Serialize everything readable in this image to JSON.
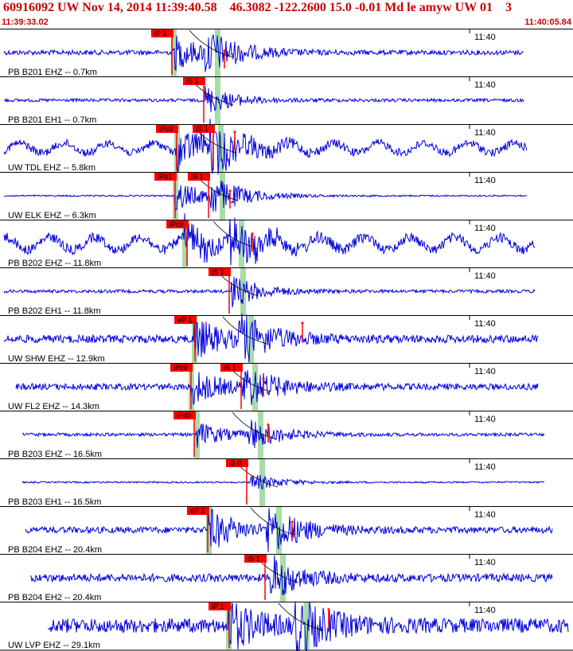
{
  "header": {
    "title": "60916092 UW Nov 14, 2014 11:39:40.58    46.3082 -122.2600 15.0 -0.01 Md le amyw UW 01    3",
    "start_time": "11:39:33.02",
    "end_time": "11:40:05.84"
  },
  "colors": {
    "trace": "#0000dd",
    "pick_box": "#ff0000",
    "pick_flag": "#ff0000",
    "predicted_band": "#a8dca8",
    "travel_curve": "#000000",
    "title": "#cc0000"
  },
  "traces": [
    {
      "label": "PB B201 EHZ -- 0.7km",
      "time_mark": "11:40",
      "picks": [
        "iP 1"
      ],
      "amp_marker": true
    },
    {
      "label": "PB B201 EH1 -- 0.7km",
      "time_mark": "11:40",
      "picks": [
        "iS 1"
      ],
      "amp_marker": false
    },
    {
      "label": "UW TDL EHZ -- 5.8km",
      "time_mark": "11:40",
      "picks": [
        "iPc0",
        "iS 1"
      ],
      "amp_marker": true
    },
    {
      "label": "UW ELK EHZ -- 6.3km",
      "time_mark": "11:40",
      "picks": [
        "iPd1",
        "iS 1"
      ],
      "amp_marker": true
    },
    {
      "label": "PB B202 EHZ -- 11.8km",
      "time_mark": "11:40",
      "picks": [
        "iPc0"
      ],
      "amp_marker": true
    },
    {
      "label": "PB B202 EH1 -- 11.8km",
      "time_mark": "11:40",
      "picks": [
        "iS 1"
      ],
      "amp_marker": false
    },
    {
      "label": "UW SHW EHZ -- 12.9km",
      "time_mark": "11:40",
      "picks": [
        "eP 1"
      ],
      "amp_marker": true
    },
    {
      "label": "UW FL2 EHZ -- 14.3km",
      "time_mark": "11:40",
      "picks": [
        "iPc0",
        "iS 1"
      ],
      "amp_marker": true
    },
    {
      "label": "PB B203 EHZ -- 16.5km",
      "time_mark": "11:40",
      "picks": [
        "iPd0"
      ],
      "amp_marker": true
    },
    {
      "label": "PB B203 EH1 -- 16.5km",
      "time_mark": "11:40",
      "picks": [
        "iS 0"
      ],
      "amp_marker": false
    },
    {
      "label": "PB B204 EHZ -- 20.4km",
      "time_mark": "11:40",
      "picks": [
        "eP 2"
      ],
      "amp_marker": true
    },
    {
      "label": "PB B204 EH2 -- 20.4km",
      "time_mark": "11:40",
      "picks": [
        "iS 1"
      ],
      "amp_marker": false
    },
    {
      "label": "UW LVP EHZ -- 29.1km",
      "time_mark": "11:40",
      "picks": [
        "iP 1"
      ],
      "amp_marker": true
    }
  ]
}
